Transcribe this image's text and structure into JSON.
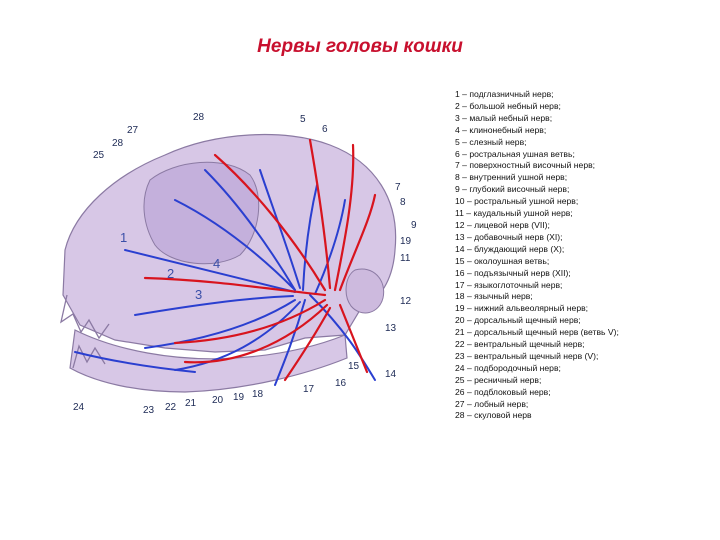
{
  "title": "Нервы головы кошки",
  "legend": [
    "1 – подглазничный нерв;",
    "2 – большой небный нерв;",
    "3 – малый небный нерв;",
    "4 – клинонебный нерв;",
    "5 – слезный нерв;",
    "6 – ростральная ушная ветвь;",
    "7 – поверхностный височный нерв;",
    "8 – внутренний ушной нерв;",
    "9 – глубокий височный нерв;",
    "10 – ростральный ушной нерв;",
    "11 – каудальный ушной нерв;",
    "12 – лицевой нерв (VII);",
    "13 – добавочный нерв (XI);",
    "14 – блуждающий нерв (X);",
    "15 – околоушная ветвь;",
    "16 – подъязычный нерв (XII);",
    "17 – языкоглоточный нерв;",
    "18 – язычный нерв;",
    "19 – нижний альвеолярный нерв;",
    "20 – дорсальный щечный нерв;",
    "21 – дорсальный щечный нерв (ветвь V);",
    "22 – вентральный щечный нерв;",
    "23 – вентральный щечный нерв (V);",
    "24 – подбородочный нерв;",
    "25 – ресничный нерв;",
    "26 – подблоковый нерв;",
    "27 – лобный нерв;",
    "28 – скуловой нерв"
  ],
  "callouts": [
    "28",
    "5",
    "6",
    "27",
    "28",
    "25",
    "7",
    "8",
    "9",
    "19",
    "11",
    "1",
    "2",
    "4",
    "3",
    "12",
    "13",
    "15",
    "16",
    "14",
    "17",
    "24",
    "23",
    "22",
    "21",
    "20",
    "19",
    "18"
  ],
  "colors": {
    "title": "#c8102e",
    "nerve_red": "#d8141e",
    "nerve_blue": "#2a3fd0",
    "skull": "#d7c7e6",
    "skull_outline": "#8b7aa3"
  }
}
